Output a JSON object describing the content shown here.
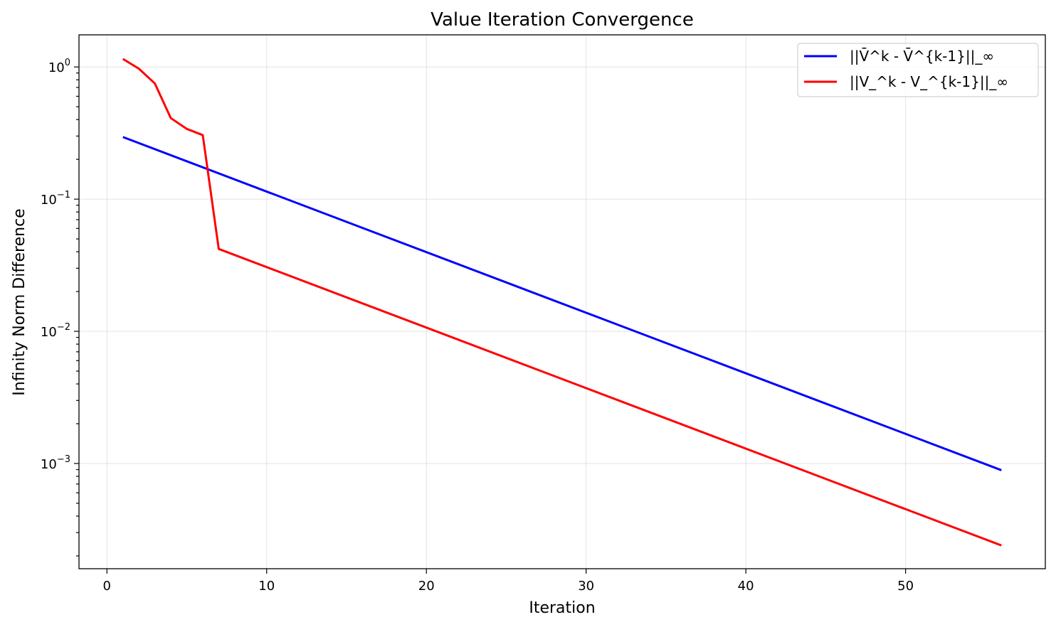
{
  "chart_data": {
    "type": "line",
    "title": "Value Iteration Convergence",
    "xlabel": "Iteration",
    "ylabel": "Infinity Norm Difference",
    "xlim": [
      -1.75,
      58.75
    ],
    "ylim": [
      0.00016,
      1.75
    ],
    "yscale": "log",
    "grid": true,
    "legend_position": "top-right",
    "xticks": [
      0,
      10,
      20,
      30,
      40,
      50
    ],
    "yticks": [
      {
        "value": 0.001,
        "base": "10",
        "exp": "−3"
      },
      {
        "value": 0.01,
        "base": "10",
        "exp": "−2"
      },
      {
        "value": 0.1,
        "base": "10",
        "exp": "−1"
      },
      {
        "value": 1,
        "base": "10",
        "exp": "0"
      }
    ],
    "series": [
      {
        "name": "||V̄^k - V̄^{k-1}||_∞",
        "color": "#0000ff",
        "x": [
          1,
          56
        ],
        "y": [
          0.295,
          0.00089
        ]
      },
      {
        "name": "||V_^k - V_^{k-1}||_∞",
        "color": "#ff0000",
        "x": [
          1,
          2,
          3,
          4,
          5,
          6,
          7,
          56
        ],
        "y": [
          1.15,
          0.97,
          0.75,
          0.41,
          0.34,
          0.305,
          0.042,
          0.00024
        ]
      }
    ]
  }
}
